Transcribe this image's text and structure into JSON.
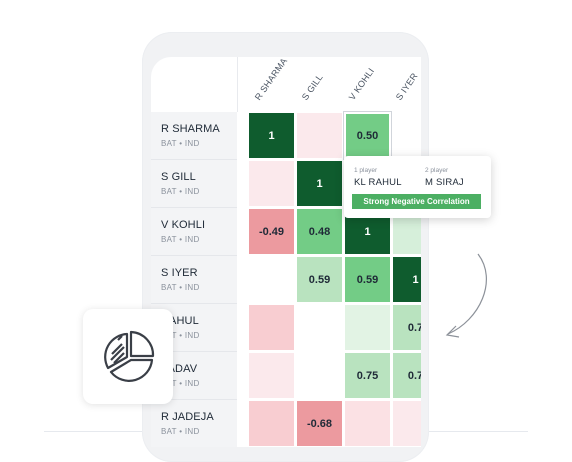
{
  "columns": [
    "R SHARMA",
    "S GILL",
    "V KOHLI",
    "S IYER"
  ],
  "rows": [
    {
      "name": "R SHARMA",
      "sub": "BAT • IND"
    },
    {
      "name": "S GILL",
      "sub": "BAT • IND"
    },
    {
      "name": "V KOHLI",
      "sub": "BAT • IND"
    },
    {
      "name": "S IYER",
      "sub": "BAT • IND"
    },
    {
      "name": "RAHUL",
      "sub": "BAT • IND"
    },
    {
      "name": "YADAV",
      "sub": "BAT • IND"
    },
    {
      "name": "R JADEJA",
      "sub": "BAT • IND"
    }
  ],
  "cells": [
    [
      "1",
      "",
      "0.50",
      ""
    ],
    [
      "",
      "1",
      "",
      ""
    ],
    [
      "-0.49",
      "0.48",
      "1",
      ""
    ],
    [
      "",
      "0.59",
      "0.59",
      "1"
    ],
    [
      "",
      "",
      "",
      "0.7"
    ],
    [
      "",
      "",
      "0.75",
      "0.7"
    ],
    [
      "",
      "-0.68",
      "",
      ""
    ]
  ],
  "cell_colors": [
    [
      "#0f5c2e",
      "#fbe9ec",
      "#73cc86",
      "#ffffff"
    ],
    [
      "#fbe9ec",
      "#0f5c2e",
      "#ffffff",
      "#ffffff"
    ],
    [
      "#ec9a9f",
      "#73cc86",
      "#0f5c2e",
      "#d6efda"
    ],
    [
      "#ffffff",
      "#b9e3bf",
      "#73cc86",
      "#0f5c2e"
    ],
    [
      "#f8cdd1",
      "#ffffff",
      "#e2f3e4",
      "#b9e3bf"
    ],
    [
      "#fbe9ec",
      "#ffffff",
      "#b9e3bf",
      "#b9e3bf"
    ],
    [
      "#f8cdd1",
      "#ec9a9f",
      "#fbe1e4",
      "#fbe9ec"
    ]
  ],
  "tooltip": {
    "label1": "1 player",
    "player1": "KL RAHUL",
    "label2": "2 player",
    "player2": "M SIRAJ",
    "badge": "Strong Negative Correlation",
    "badge_color": "#4caf63"
  },
  "icons": {
    "card": "pie-chart-icon",
    "arrow": "curved-arrow-icon"
  }
}
